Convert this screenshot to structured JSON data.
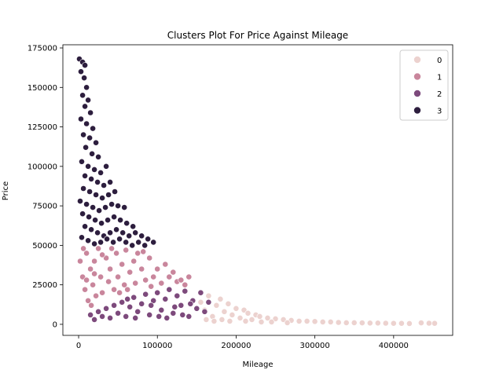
{
  "chart_data": {
    "type": "scatter",
    "title": "Clusters Plot For Price Against Mileage",
    "xlabel": "Mileage",
    "ylabel": "Price",
    "xlim": [
      -20000,
      475000
    ],
    "ylim": [
      -7000,
      177000
    ],
    "xticks": [
      0,
      100000,
      200000,
      300000,
      400000
    ],
    "yticks": [
      0,
      25000,
      50000,
      75000,
      100000,
      125000,
      150000,
      175000
    ],
    "xtick_labels": [
      "0",
      "100000",
      "200000",
      "300000",
      "400000"
    ],
    "ytick_labels": [
      "0",
      "25000",
      "50000",
      "75000",
      "100000",
      "125000",
      "150000",
      "175000"
    ],
    "grid": false,
    "legend_position": "top-right",
    "legend": [
      "0",
      "1",
      "2",
      "3"
    ],
    "series": [
      {
        "name": "0",
        "color": "#ecd2cf",
        "points": [
          [
            155000,
            14000
          ],
          [
            160000,
            9000
          ],
          [
            165000,
            18000
          ],
          [
            170000,
            5000
          ],
          [
            175000,
            12000
          ],
          [
            180000,
            16000
          ],
          [
            185000,
            8000
          ],
          [
            190000,
            13000
          ],
          [
            195000,
            6000
          ],
          [
            200000,
            10000
          ],
          [
            205000,
            4000
          ],
          [
            210000,
            9000
          ],
          [
            215000,
            7000
          ],
          [
            220000,
            3000
          ],
          [
            225000,
            6000
          ],
          [
            230000,
            5000
          ],
          [
            240000,
            4000
          ],
          [
            250000,
            3500
          ],
          [
            260000,
            3000
          ],
          [
            270000,
            2500
          ],
          [
            280000,
            2000
          ],
          [
            290000,
            2000
          ],
          [
            300000,
            1800
          ],
          [
            310000,
            1500
          ],
          [
            320000,
            1500
          ],
          [
            330000,
            1200
          ],
          [
            340000,
            1000
          ],
          [
            350000,
            1000
          ],
          [
            360000,
            900
          ],
          [
            370000,
            800
          ],
          [
            380000,
            800
          ],
          [
            390000,
            700
          ],
          [
            400000,
            600
          ],
          [
            410000,
            600
          ],
          [
            420000,
            500
          ],
          [
            435000,
            900
          ],
          [
            445000,
            700
          ],
          [
            452000,
            600
          ],
          [
            162000,
            3000
          ],
          [
            172000,
            2000
          ],
          [
            182000,
            3000
          ],
          [
            192000,
            2000
          ],
          [
            212000,
            2000
          ],
          [
            232000,
            1500
          ],
          [
            245000,
            1500
          ],
          [
            265000,
            1000
          ]
        ]
      },
      {
        "name": "1",
        "color": "#c9869c",
        "points": [
          [
            2000,
            40000
          ],
          [
            5000,
            30000
          ],
          [
            8000,
            22000
          ],
          [
            10000,
            45000
          ],
          [
            12000,
            15000
          ],
          [
            15000,
            35000
          ],
          [
            18000,
            25000
          ],
          [
            20000,
            40000
          ],
          [
            22000,
            18000
          ],
          [
            25000,
            48000
          ],
          [
            28000,
            30000
          ],
          [
            30000,
            20000
          ],
          [
            35000,
            42000
          ],
          [
            38000,
            27000
          ],
          [
            40000,
            35000
          ],
          [
            45000,
            22000
          ],
          [
            48000,
            45000
          ],
          [
            50000,
            30000
          ],
          [
            55000,
            38000
          ],
          [
            58000,
            25000
          ],
          [
            60000,
            47000
          ],
          [
            65000,
            33000
          ],
          [
            70000,
            40000
          ],
          [
            72000,
            26000
          ],
          [
            75000,
            45000
          ],
          [
            80000,
            35000
          ],
          [
            85000,
            28000
          ],
          [
            90000,
            42000
          ],
          [
            95000,
            30000
          ],
          [
            100000,
            35000
          ],
          [
            105000,
            26000
          ],
          [
            110000,
            38000
          ],
          [
            115000,
            30000
          ],
          [
            120000,
            33000
          ],
          [
            125000,
            27000
          ],
          [
            130000,
            28000
          ],
          [
            135000,
            25000
          ],
          [
            140000,
            30000
          ],
          [
            10000,
            28000
          ],
          [
            20000,
            32000
          ],
          [
            30000,
            44000
          ],
          [
            42000,
            48000
          ],
          [
            52000,
            20000
          ],
          [
            62000,
            22000
          ],
          [
            82000,
            46000
          ],
          [
            92000,
            24000
          ],
          [
            6000,
            48000
          ],
          [
            16000,
            12000
          ]
        ]
      },
      {
        "name": "2",
        "color": "#7d4a7c",
        "points": [
          [
            15000,
            6000
          ],
          [
            20000,
            3000
          ],
          [
            25000,
            8000
          ],
          [
            30000,
            5000
          ],
          [
            35000,
            10000
          ],
          [
            40000,
            4000
          ],
          [
            45000,
            12000
          ],
          [
            50000,
            7000
          ],
          [
            55000,
            14000
          ],
          [
            60000,
            5000
          ],
          [
            65000,
            11000
          ],
          [
            70000,
            17000
          ],
          [
            75000,
            8000
          ],
          [
            80000,
            13000
          ],
          [
            85000,
            19000
          ],
          [
            90000,
            6000
          ],
          [
            95000,
            15000
          ],
          [
            100000,
            20000
          ],
          [
            105000,
            9000
          ],
          [
            110000,
            16000
          ],
          [
            115000,
            22000
          ],
          [
            120000,
            7000
          ],
          [
            125000,
            18000
          ],
          [
            130000,
            12000
          ],
          [
            135000,
            21000
          ],
          [
            140000,
            5000
          ],
          [
            145000,
            15000
          ],
          [
            150000,
            10000
          ],
          [
            155000,
            20000
          ],
          [
            160000,
            8000
          ],
          [
            165000,
            14000
          ],
          [
            112000,
            4000
          ],
          [
            122000,
            11000
          ],
          [
            132000,
            6000
          ],
          [
            142000,
            13000
          ],
          [
            102000,
            5000
          ],
          [
            92000,
            12000
          ],
          [
            72000,
            4000
          ],
          [
            62000,
            16000
          ]
        ]
      },
      {
        "name": "3",
        "color": "#2d1e3e",
        "points": [
          [
            1000,
            168000
          ],
          [
            5000,
            166000
          ],
          [
            8000,
            164000
          ],
          [
            3000,
            160000
          ],
          [
            7000,
            156000
          ],
          [
            10000,
            150000
          ],
          [
            5000,
            145000
          ],
          [
            12000,
            142000
          ],
          [
            8000,
            138000
          ],
          [
            15000,
            134000
          ],
          [
            3000,
            130000
          ],
          [
            10000,
            127000
          ],
          [
            18000,
            124000
          ],
          [
            6000,
            120000
          ],
          [
            14000,
            118000
          ],
          [
            22000,
            115000
          ],
          [
            9000,
            112000
          ],
          [
            17000,
            108000
          ],
          [
            25000,
            106000
          ],
          [
            4000,
            103000
          ],
          [
            12000,
            100000
          ],
          [
            20000,
            98000
          ],
          [
            28000,
            96000
          ],
          [
            35000,
            100000
          ],
          [
            8000,
            94000
          ],
          [
            16000,
            92000
          ],
          [
            24000,
            90000
          ],
          [
            32000,
            88000
          ],
          [
            40000,
            90000
          ],
          [
            6000,
            86000
          ],
          [
            14000,
            84000
          ],
          [
            22000,
            82000
          ],
          [
            30000,
            80000
          ],
          [
            38000,
            82000
          ],
          [
            46000,
            84000
          ],
          [
            2000,
            78000
          ],
          [
            10000,
            76000
          ],
          [
            18000,
            74000
          ],
          [
            26000,
            72000
          ],
          [
            34000,
            74000
          ],
          [
            42000,
            76000
          ],
          [
            50000,
            75000
          ],
          [
            58000,
            74000
          ],
          [
            5000,
            70000
          ],
          [
            13000,
            68000
          ],
          [
            21000,
            66000
          ],
          [
            29000,
            64000
          ],
          [
            37000,
            66000
          ],
          [
            45000,
            68000
          ],
          [
            53000,
            66000
          ],
          [
            61000,
            64000
          ],
          [
            69000,
            62000
          ],
          [
            8000,
            62000
          ],
          [
            16000,
            60000
          ],
          [
            24000,
            58000
          ],
          [
            32000,
            56000
          ],
          [
            40000,
            58000
          ],
          [
            48000,
            60000
          ],
          [
            56000,
            58000
          ],
          [
            64000,
            56000
          ],
          [
            72000,
            58000
          ],
          [
            80000,
            56000
          ],
          [
            88000,
            54000
          ],
          [
            95000,
            52000
          ],
          [
            4000,
            55000
          ],
          [
            12000,
            53000
          ],
          [
            20000,
            51000
          ],
          [
            28000,
            52000
          ],
          [
            36000,
            54000
          ],
          [
            44000,
            52000
          ],
          [
            52000,
            54000
          ],
          [
            60000,
            52000
          ],
          [
            68000,
            50000
          ],
          [
            76000,
            52000
          ],
          [
            84000,
            50000
          ]
        ]
      }
    ]
  }
}
